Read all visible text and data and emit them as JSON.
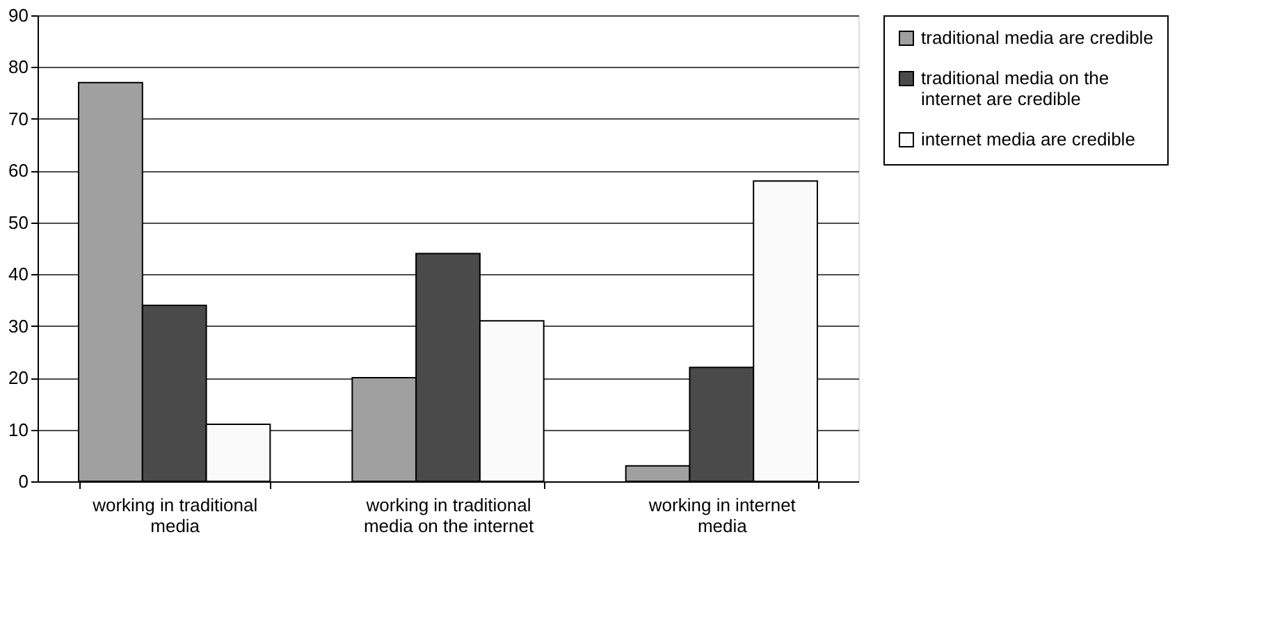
{
  "chart_data": {
    "type": "bar",
    "categories": [
      "working in traditional media",
      "working in traditional media on the internet",
      "working in internet media"
    ],
    "series": [
      {
        "name": "traditional media are credible",
        "color": "#a0a0a0",
        "values": [
          77,
          20,
          3
        ]
      },
      {
        "name": "traditional media on the internet are credible",
        "color": "#4a4a4a",
        "values": [
          34,
          44,
          22
        ]
      },
      {
        "name": "internet media are credible",
        "color": "#fafafa",
        "values": [
          11,
          31,
          58
        ]
      }
    ],
    "ylim": [
      0,
      90
    ],
    "yticks": [
      0,
      10,
      20,
      30,
      40,
      50,
      60,
      70,
      80,
      90
    ],
    "grid": "y",
    "legend": "right"
  }
}
